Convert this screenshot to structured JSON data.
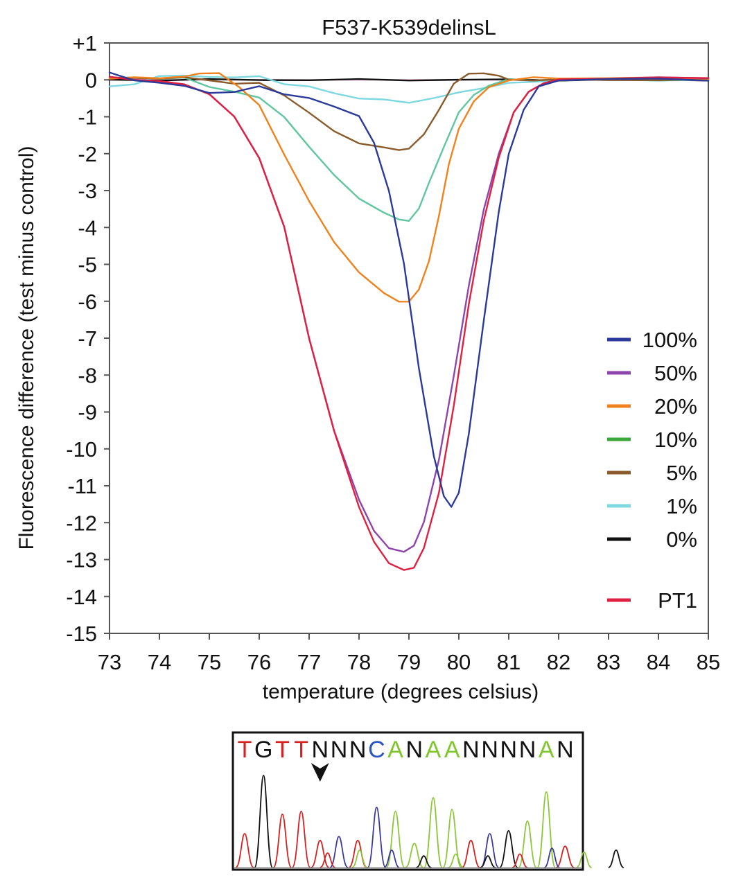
{
  "chart_data": {
    "type": "line",
    "title": "F537-K539delinsL",
    "xlabel": "temperature (degrees celsius)",
    "ylabel": "Fluorescence difference (test minus control)",
    "xlim": [
      73,
      85
    ],
    "ylim": [
      -15,
      1
    ],
    "xticks": [
      73,
      74,
      75,
      76,
      77,
      78,
      79,
      80,
      81,
      82,
      83,
      84,
      85
    ],
    "yticks": [
      1,
      0,
      -1,
      -2,
      -3,
      -4,
      -5,
      -6,
      -7,
      -8,
      -9,
      -10,
      -11,
      -12,
      -13,
      -14,
      -15
    ],
    "ytick_labels": [
      "+1",
      "0",
      "-1",
      "-2",
      "-3",
      "-4",
      "-5",
      "-6",
      "-7",
      "-8",
      "-9",
      "-10",
      "-11",
      "-12",
      "-13",
      "-14",
      "-15"
    ],
    "legend_position": "right",
    "reference_line": {
      "y": 0,
      "color": "#e8b4d0"
    },
    "series": [
      {
        "name": "100%",
        "color": "#2b3a9a",
        "x": [
          73,
          73.5,
          74,
          74.5,
          75,
          75.5,
          76,
          76.5,
          77,
          77.5,
          78,
          78.3,
          78.6,
          78.9,
          79.2,
          79.5,
          79.7,
          79.85,
          80,
          80.2,
          80.5,
          80.8,
          81,
          81.3,
          81.6,
          82,
          83,
          84,
          85
        ],
        "y": [
          0.2,
          0,
          -0.1,
          -0.15,
          -0.35,
          -0.35,
          -0.15,
          -0.4,
          -0.5,
          -0.7,
          -1.0,
          -1.7,
          -3.0,
          -5.0,
          -7.8,
          -10.2,
          -11.3,
          -11.55,
          -11.2,
          -9.6,
          -6.5,
          -3.6,
          -2.0,
          -0.8,
          -0.2,
          0.0,
          0.02,
          0.02,
          0.0
        ]
      },
      {
        "name": "50%",
        "color": "#8e44ad",
        "x": [
          73,
          73.5,
          74,
          74.5,
          75,
          75.5,
          76,
          76.5,
          77,
          77.5,
          78,
          78.3,
          78.6,
          78.9,
          79.1,
          79.3,
          79.6,
          79.9,
          80.2,
          80.5,
          80.8,
          81.1,
          81.4,
          81.7,
          82,
          83,
          84,
          85
        ],
        "y": [
          0.1,
          0,
          -0.05,
          -0.1,
          -0.4,
          -1.0,
          -2.1,
          -4.0,
          -7.0,
          -9.5,
          -11.4,
          -12.2,
          -12.7,
          -12.8,
          -12.6,
          -12.0,
          -10.3,
          -8.0,
          -5.6,
          -3.5,
          -2.0,
          -0.9,
          -0.3,
          -0.1,
          0.0,
          0.05,
          0.05,
          0.05
        ]
      },
      {
        "name": "20%",
        "color": "#f0821e",
        "x": [
          73,
          73.5,
          74,
          74.5,
          74.8,
          75.2,
          75.6,
          76,
          76.5,
          77,
          77.5,
          78,
          78.5,
          78.8,
          79,
          79.2,
          79.4,
          79.6,
          79.8,
          80,
          80.3,
          80.6,
          81,
          81.5,
          82,
          83,
          84,
          85
        ],
        "y": [
          0.05,
          0.05,
          0.05,
          0.1,
          0.15,
          0.2,
          -0.2,
          -0.7,
          -2.0,
          -3.3,
          -4.4,
          -5.2,
          -5.8,
          -6.0,
          -6.0,
          -5.7,
          -4.9,
          -3.7,
          -2.3,
          -1.3,
          -0.6,
          -0.2,
          0.0,
          0.05,
          0.05,
          0.05,
          0.05,
          0.05
        ]
      },
      {
        "name": "10%",
        "color": "#5fc6a0",
        "x": [
          73,
          73.5,
          74,
          74.5,
          75,
          75.5,
          76,
          76.5,
          77,
          77.5,
          78,
          78.5,
          78.8,
          79,
          79.2,
          79.4,
          79.7,
          80,
          80.3,
          80.6,
          81,
          81.5,
          82,
          83,
          84,
          85
        ],
        "y": [
          0.05,
          0.05,
          0.05,
          0.05,
          -0.2,
          -0.3,
          -0.5,
          -1.0,
          -1.8,
          -2.6,
          -3.2,
          -3.6,
          -3.8,
          -3.8,
          -3.5,
          -2.8,
          -1.8,
          -0.9,
          -0.4,
          -0.15,
          0.0,
          0.0,
          0.0,
          0.0,
          0.0,
          0.0
        ]
      },
      {
        "name": "5%",
        "color": "#8a5a2a",
        "x": [
          73,
          73.5,
          74,
          74.5,
          75,
          75.5,
          76,
          76.5,
          77,
          77.5,
          78,
          78.5,
          78.8,
          79,
          79.3,
          79.6,
          79.9,
          80.2,
          80.5,
          80.8,
          81,
          81.5,
          82,
          83,
          84,
          85
        ],
        "y": [
          0.05,
          0.05,
          0.05,
          0.05,
          0.0,
          -0.1,
          -0.1,
          -0.4,
          -0.9,
          -1.4,
          -1.7,
          -1.85,
          -1.9,
          -1.85,
          -1.5,
          -0.8,
          -0.1,
          0.15,
          0.2,
          0.1,
          0.0,
          0.0,
          0.0,
          0.0,
          0.0,
          0.0
        ]
      },
      {
        "name": "1%",
        "color": "#7dd8e0",
        "x": [
          73,
          73.5,
          74,
          74.5,
          75,
          75.5,
          76,
          76.5,
          77,
          77.5,
          78,
          78.5,
          79,
          79.5,
          80,
          80.5,
          81,
          81.5,
          82,
          83,
          84,
          85
        ],
        "y": [
          -0.2,
          -0.1,
          0.1,
          0.1,
          0.1,
          0.05,
          0.1,
          -0.1,
          -0.2,
          -0.35,
          -0.5,
          -0.55,
          -0.6,
          -0.5,
          -0.35,
          -0.2,
          -0.1,
          -0.05,
          0.0,
          0.0,
          0.0,
          0.0
        ]
      },
      {
        "name": "0%",
        "color": "#111111",
        "x": [
          73,
          74,
          75,
          76,
          77,
          78,
          79,
          80,
          81,
          82,
          83,
          84,
          85
        ],
        "y": [
          0.0,
          0.0,
          0.0,
          0.0,
          0.0,
          0.0,
          0.0,
          0.0,
          0.0,
          0.0,
          0.0,
          0.0,
          0.0
        ]
      },
      {
        "name": "PT1",
        "color": "#e02040",
        "x": [
          73,
          73.5,
          74,
          74.5,
          75,
          75.5,
          76,
          76.5,
          77,
          77.5,
          78,
          78.3,
          78.6,
          78.9,
          79.1,
          79.3,
          79.6,
          79.9,
          80.2,
          80.5,
          80.8,
          81.1,
          81.4,
          81.7,
          82,
          83,
          84,
          85
        ],
        "y": [
          0.1,
          0,
          -0.05,
          -0.1,
          -0.4,
          -1.0,
          -2.1,
          -4.0,
          -7.0,
          -9.5,
          -11.6,
          -12.5,
          -13.1,
          -13.3,
          -13.2,
          -12.7,
          -11.2,
          -8.8,
          -6.1,
          -3.8,
          -2.1,
          -0.9,
          -0.3,
          -0.1,
          0.0,
          0.05,
          0.05,
          0.05
        ]
      }
    ]
  },
  "sequence": {
    "letters": [
      "T",
      "G",
      "T",
      "T",
      "N",
      "N",
      "N",
      "C",
      "A",
      "N",
      "A",
      "A",
      "N",
      "N",
      "N",
      "N",
      "A",
      "N"
    ],
    "colors": [
      "#d62020",
      "#111111",
      "#d62020",
      "#d62020",
      "#111111",
      "#111111",
      "#111111",
      "#2a55c0",
      "#7ec62a",
      "#111111",
      "#7ec62a",
      "#7ec62a",
      "#111111",
      "#111111",
      "#111111",
      "#111111",
      "#7ec62a",
      "#111111"
    ],
    "marker_index": 4,
    "peak_colors": {
      "T": "#d62020",
      "G": "#111111",
      "C": "#3a3a9a",
      "A": "#8ec63a"
    },
    "peaks": [
      {
        "base": "T",
        "h": 0.35
      },
      {
        "base": "G",
        "h": 0.95
      },
      {
        "base": "T",
        "h": 0.55
      },
      {
        "base": "T",
        "h": 0.58
      },
      {
        "base": "T",
        "h": 0.28
      },
      {
        "base": "C",
        "h": 0.32
      },
      {
        "base": "T",
        "h": 0.28
      },
      {
        "base": "C",
        "h": 0.62
      },
      {
        "base": "A",
        "h": 0.58
      },
      {
        "base": "A",
        "h": 0.25
      },
      {
        "base": "A",
        "h": 0.72
      },
      {
        "base": "A",
        "h": 0.6
      },
      {
        "base": "T",
        "h": 0.28
      },
      {
        "base": "C",
        "h": 0.35
      },
      {
        "base": "G",
        "h": 0.38
      },
      {
        "base": "A",
        "h": 0.48
      },
      {
        "base": "A",
        "h": 0.78
      },
      {
        "base": "T",
        "h": 0.22
      }
    ],
    "minor_peaks": [
      {
        "base": "T",
        "h": 0.15
      },
      {
        "base": "A",
        "h": 0.18
      },
      {
        "base": "C",
        "h": 0.18
      },
      {
        "base": "G",
        "h": 0.12
      },
      {
        "base": "A",
        "h": 0.14
      },
      {
        "base": "G",
        "h": 0.12
      },
      {
        "base": "T",
        "h": 0.14
      },
      {
        "base": "C",
        "h": 0.2
      },
      {
        "base": "A",
        "h": 0.16
      },
      {
        "base": "G",
        "h": 0.18
      }
    ]
  }
}
